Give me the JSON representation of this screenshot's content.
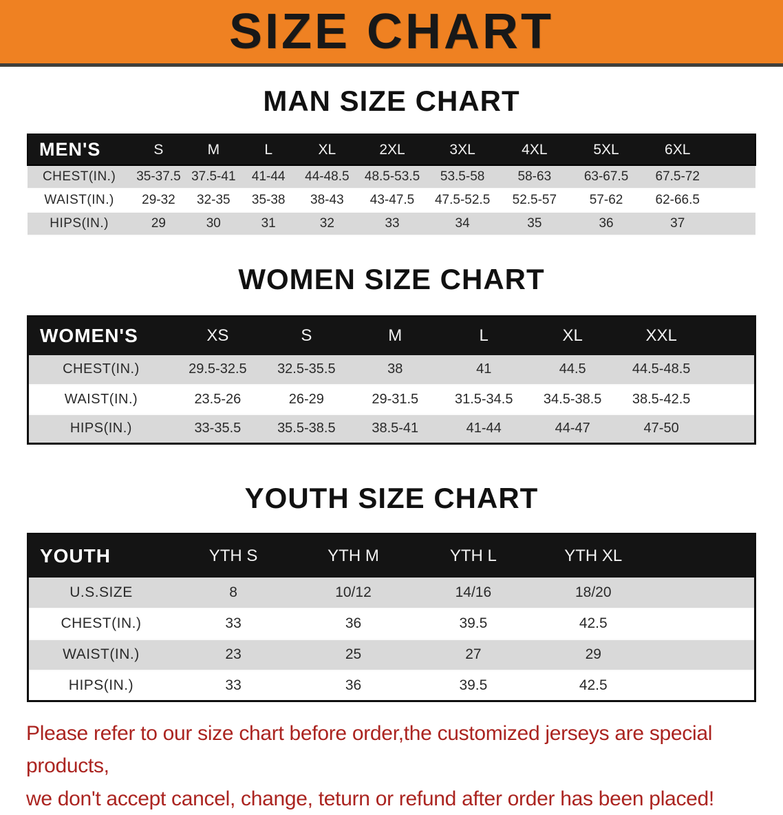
{
  "banner": {
    "title": "SIZE CHART"
  },
  "colors": {
    "banner_bg": "#ef8122",
    "banner_text": "#181818",
    "bar_bg": "#141414",
    "row_gray": "#d9d9d9",
    "notice_red": "#ab2420"
  },
  "sections": [
    {
      "heading": "MAN SIZE CHART",
      "table": {
        "header_label": "MEN'S",
        "columns": [
          "S",
          "M",
          "L",
          "XL",
          "2XL",
          "3XL",
          "4XL",
          "5XL",
          "6XL"
        ],
        "rows": [
          {
            "label": "CHEST(IN.)",
            "values": [
              "35-37.5",
              "37.5-41",
              "41-44",
              "44-48.5",
              "48.5-53.5",
              "53.5-58",
              "58-63",
              "63-67.5",
              "67.5-72"
            ]
          },
          {
            "label": "WAIST(IN.)",
            "values": [
              "29-32",
              "32-35",
              "35-38",
              "38-43",
              "43-47.5",
              "47.5-52.5",
              "52.5-57",
              "57-62",
              "62-66.5"
            ]
          },
          {
            "label": "HIPS(IN.)",
            "values": [
              "29",
              "30",
              "31",
              "32",
              "33",
              "34",
              "35",
              "36",
              "37"
            ]
          }
        ]
      }
    },
    {
      "heading": "WOMEN SIZE CHART",
      "table": {
        "header_label": "WOMEN'S",
        "columns": [
          "XS",
          "S",
          "M",
          "L",
          "XL",
          "XXL"
        ],
        "rows": [
          {
            "label": "CHEST(IN.)",
            "values": [
              "29.5-32.5",
              "32.5-35.5",
              "38",
              "41",
              "44.5",
              "44.5-48.5"
            ]
          },
          {
            "label": "WAIST(IN.)",
            "values": [
              "23.5-26",
              "26-29",
              "29-31.5",
              "31.5-34.5",
              "34.5-38.5",
              "38.5-42.5"
            ]
          },
          {
            "label": "HIPS(IN.)",
            "values": [
              "33-35.5",
              "35.5-38.5",
              "38.5-41",
              "41-44",
              "44-47",
              "47-50"
            ]
          }
        ]
      }
    },
    {
      "heading": "YOUTH SIZE CHART",
      "table": {
        "header_label": "YOUTH",
        "columns": [
          "YTH S",
          "YTH M",
          "YTH L",
          "YTH XL"
        ],
        "rows": [
          {
            "label": "U.S.SIZE",
            "values": [
              "8",
              "10/12",
              "14/16",
              "18/20"
            ]
          },
          {
            "label": "CHEST(IN.)",
            "values": [
              "33",
              "36",
              "39.5",
              "42.5"
            ]
          },
          {
            "label": "WAIST(IN.)",
            "values": [
              "23",
              "25",
              "27",
              "29"
            ]
          },
          {
            "label": "HIPS(IN.)",
            "values": [
              "33",
              "36",
              "39.5",
              "42.5"
            ]
          }
        ]
      }
    }
  ],
  "footer": {
    "lines": [
      "Please refer to our size chart before order,the customized jerseys are special products,",
      "we don't accept cancel, change, teturn or refund after order has been placed!"
    ]
  }
}
